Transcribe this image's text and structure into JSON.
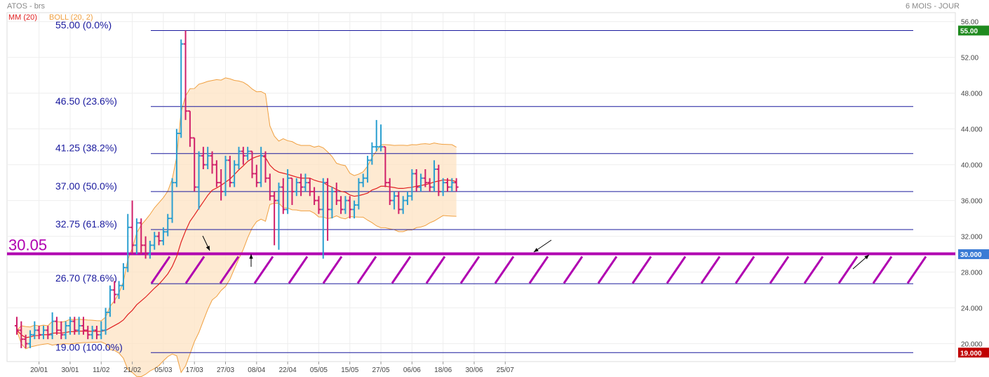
{
  "header": {
    "title": "ATOS - brs",
    "period": "6 MOIS - JOUR",
    "legend": [
      {
        "label": "MM (20)",
        "color": "#e02020"
      },
      {
        "label": "BOLL (20, 2)",
        "color": "#f0a040"
      }
    ]
  },
  "chart_data": {
    "type": "ohlc",
    "ylim": [
      18,
      57
    ],
    "yticks": [
      20,
      24,
      28,
      32,
      36,
      40,
      44,
      48,
      52,
      56
    ],
    "ytick_labels": [
      "20.000",
      "24.000",
      "28.000",
      "32.000",
      "36.000",
      "40.000",
      "44.000",
      "48.000",
      "52.00",
      "56.00"
    ],
    "x_tick_labels": [
      {
        "label": "20/01",
        "idx": 5
      },
      {
        "label": "30/01",
        "idx": 12
      },
      {
        "label": "11/02",
        "idx": 19
      },
      {
        "label": "21/02",
        "idx": 26
      },
      {
        "label": "05/03",
        "idx": 33
      },
      {
        "label": "17/03",
        "idx": 40
      },
      {
        "label": "27/03",
        "idx": 47
      },
      {
        "label": "08/04",
        "idx": 54
      },
      {
        "label": "22/04",
        "idx": 61
      },
      {
        "label": "05/05",
        "idx": 68
      },
      {
        "label": "15/05",
        "idx": 75
      },
      {
        "label": "27/05",
        "idx": 82
      },
      {
        "label": "06/06",
        "idx": 89
      },
      {
        "label": "18/06",
        "idx": 96
      },
      {
        "label": "30/06",
        "idx": 103
      },
      {
        "label": "25/07",
        "idx": 110
      }
    ],
    "fib_levels": [
      {
        "value": 55.0,
        "label": "55.00  (0.0%)"
      },
      {
        "value": 46.5,
        "label": "46.50  (23.6%)"
      },
      {
        "value": 41.25,
        "label": "41.25  (38.2%)"
      },
      {
        "value": 37.0,
        "label": "37.00  (50.0%)"
      },
      {
        "value": 32.75,
        "label": "32.75  (61.8%)"
      },
      {
        "value": 26.7,
        "label": "26.70  (78.6%)"
      },
      {
        "value": 19.0,
        "label": "19.00  (100.0%)"
      }
    ],
    "support": {
      "value": 30.05,
      "label": "30.05"
    },
    "price_tags": [
      {
        "value": 55.0,
        "label": "55.00",
        "color": "#1f8a1f"
      },
      {
        "value": 30.0,
        "label": "30.000",
        "color": "#3a7bd5"
      },
      {
        "value": 19.0,
        "label": "19.000",
        "color": "#c00000"
      }
    ],
    "candles": [
      [
        22,
        23,
        21,
        21.5
      ],
      [
        21.5,
        22.5,
        19.5,
        20.5
      ],
      [
        20.5,
        21,
        19.5,
        20
      ],
      [
        20,
        21.5,
        19.5,
        21
      ],
      [
        21,
        22.5,
        20.5,
        21.5
      ],
      [
        21.5,
        22,
        20.5,
        21
      ],
      [
        21,
        22,
        20.5,
        21.5
      ],
      [
        21.5,
        22,
        20.5,
        21
      ],
      [
        21,
        23.5,
        20.5,
        22.5
      ],
      [
        22.5,
        23,
        21,
        21.5
      ],
      [
        21.5,
        22.5,
        20.5,
        21
      ],
      [
        21,
        22.5,
        20.5,
        22
      ],
      [
        22,
        23,
        21,
        22.5
      ],
      [
        22.5,
        23,
        21,
        21.5
      ],
      [
        21.5,
        23,
        21,
        22
      ],
      [
        22,
        23,
        21,
        21.5
      ],
      [
        21.5,
        22,
        20.5,
        21
      ],
      [
        21,
        22,
        20.5,
        21.5
      ],
      [
        21.5,
        22,
        20.5,
        21
      ],
      [
        21,
        22.5,
        20.5,
        21.5
      ],
      [
        21.5,
        24,
        21,
        23.5
      ],
      [
        23.5,
        26.5,
        23,
        26
      ],
      [
        26,
        27,
        24.5,
        25.5
      ],
      [
        25.5,
        27,
        25,
        26.5
      ],
      [
        26.5,
        29,
        26,
        28.5
      ],
      [
        28.5,
        34.5,
        28,
        33
      ],
      [
        33,
        36,
        30,
        31
      ],
      [
        31,
        34,
        30,
        33.5
      ],
      [
        33.5,
        34,
        30,
        31
      ],
      [
        31,
        32,
        29.5,
        30
      ],
      [
        30,
        31.5,
        29.5,
        31
      ],
      [
        31,
        32.5,
        30.5,
        32
      ],
      [
        32,
        32.5,
        31,
        31.5
      ],
      [
        31.5,
        33,
        31,
        32.5
      ],
      [
        32.5,
        34.5,
        32,
        34
      ],
      [
        34,
        38.5,
        33.5,
        38
      ],
      [
        38,
        44,
        37.5,
        43.5
      ],
      [
        43.5,
        54,
        43,
        53.5
      ],
      [
        53.5,
        55,
        45,
        46
      ],
      [
        46,
        46,
        42,
        43
      ],
      [
        43,
        43,
        37,
        37.5
      ],
      [
        37.5,
        41.5,
        35,
        41
      ],
      [
        41,
        42,
        39.5,
        40
      ],
      [
        40,
        42,
        39.5,
        41
      ],
      [
        41,
        41.5,
        39,
        40
      ],
      [
        40,
        40.5,
        37.5,
        38
      ],
      [
        38,
        39.5,
        36,
        37
      ],
      [
        37,
        41,
        36.5,
        40.5
      ],
      [
        40.5,
        41,
        37.5,
        38
      ],
      [
        38,
        40.5,
        37.5,
        40
      ],
      [
        40,
        42,
        39.5,
        41.5
      ],
      [
        41.5,
        42,
        40,
        41
      ],
      [
        41,
        42,
        40.5,
        41.5
      ],
      [
        41.5,
        41.5,
        38.5,
        39
      ],
      [
        39,
        40,
        37.5,
        38
      ],
      [
        38,
        42,
        37.5,
        41
      ],
      [
        41,
        41.5,
        38,
        38.5
      ],
      [
        38.5,
        39,
        36,
        36.5
      ],
      [
        36.5,
        37,
        31,
        36
      ],
      [
        36,
        38,
        30.5,
        37.5
      ],
      [
        37.5,
        38.5,
        34.5,
        35
      ],
      [
        35,
        39.5,
        34.5,
        38.5
      ],
      [
        38.5,
        38.5,
        35.5,
        37
      ],
      [
        37,
        38.5,
        36.5,
        38
      ],
      [
        38,
        39,
        36.5,
        37.5
      ],
      [
        37.5,
        39,
        37,
        38
      ],
      [
        38,
        38.5,
        36.5,
        37
      ],
      [
        37,
        37.5,
        35.5,
        36
      ],
      [
        36,
        36.5,
        34.5,
        35
      ],
      [
        35,
        38.5,
        29.5,
        38
      ],
      [
        38,
        38.5,
        31.5,
        35
      ],
      [
        35,
        37.5,
        34,
        37
      ],
      [
        37,
        38,
        35.5,
        36
      ],
      [
        36,
        36.5,
        34.5,
        35
      ],
      [
        35,
        36.5,
        34.5,
        36
      ],
      [
        36,
        36.5,
        34,
        35
      ],
      [
        35,
        36,
        34,
        35.5
      ],
      [
        35.5,
        38.5,
        35,
        38
      ],
      [
        38,
        39,
        37.5,
        38.5
      ],
      [
        38.5,
        41,
        38,
        40.5
      ],
      [
        40.5,
        42.5,
        40,
        42
      ],
      [
        42,
        45,
        41.5,
        42
      ],
      [
        42,
        44.5,
        41.5,
        42
      ],
      [
        42,
        42,
        37.5,
        38
      ],
      [
        38,
        38.5,
        35.5,
        36
      ],
      [
        36,
        37,
        35,
        36.5
      ],
      [
        36.5,
        37,
        34.5,
        35
      ],
      [
        35,
        36.5,
        34.5,
        36
      ],
      [
        36,
        37,
        35.5,
        36.5
      ],
      [
        36.5,
        39.5,
        36,
        39
      ],
      [
        39,
        39.5,
        37,
        37.5
      ],
      [
        37.5,
        39,
        37,
        38.5
      ],
      [
        38.5,
        39.5,
        37.5,
        38
      ],
      [
        38,
        38.5,
        37,
        37.5
      ],
      [
        37.5,
        40.5,
        37,
        39.5
      ],
      [
        39.5,
        40,
        36.5,
        37
      ],
      [
        37,
        38.5,
        36.5,
        38
      ],
      [
        38,
        38.5,
        37,
        37.5
      ],
      [
        37.5,
        38.5,
        37,
        38
      ],
      [
        38,
        38.5,
        37,
        37.5
      ]
    ]
  }
}
